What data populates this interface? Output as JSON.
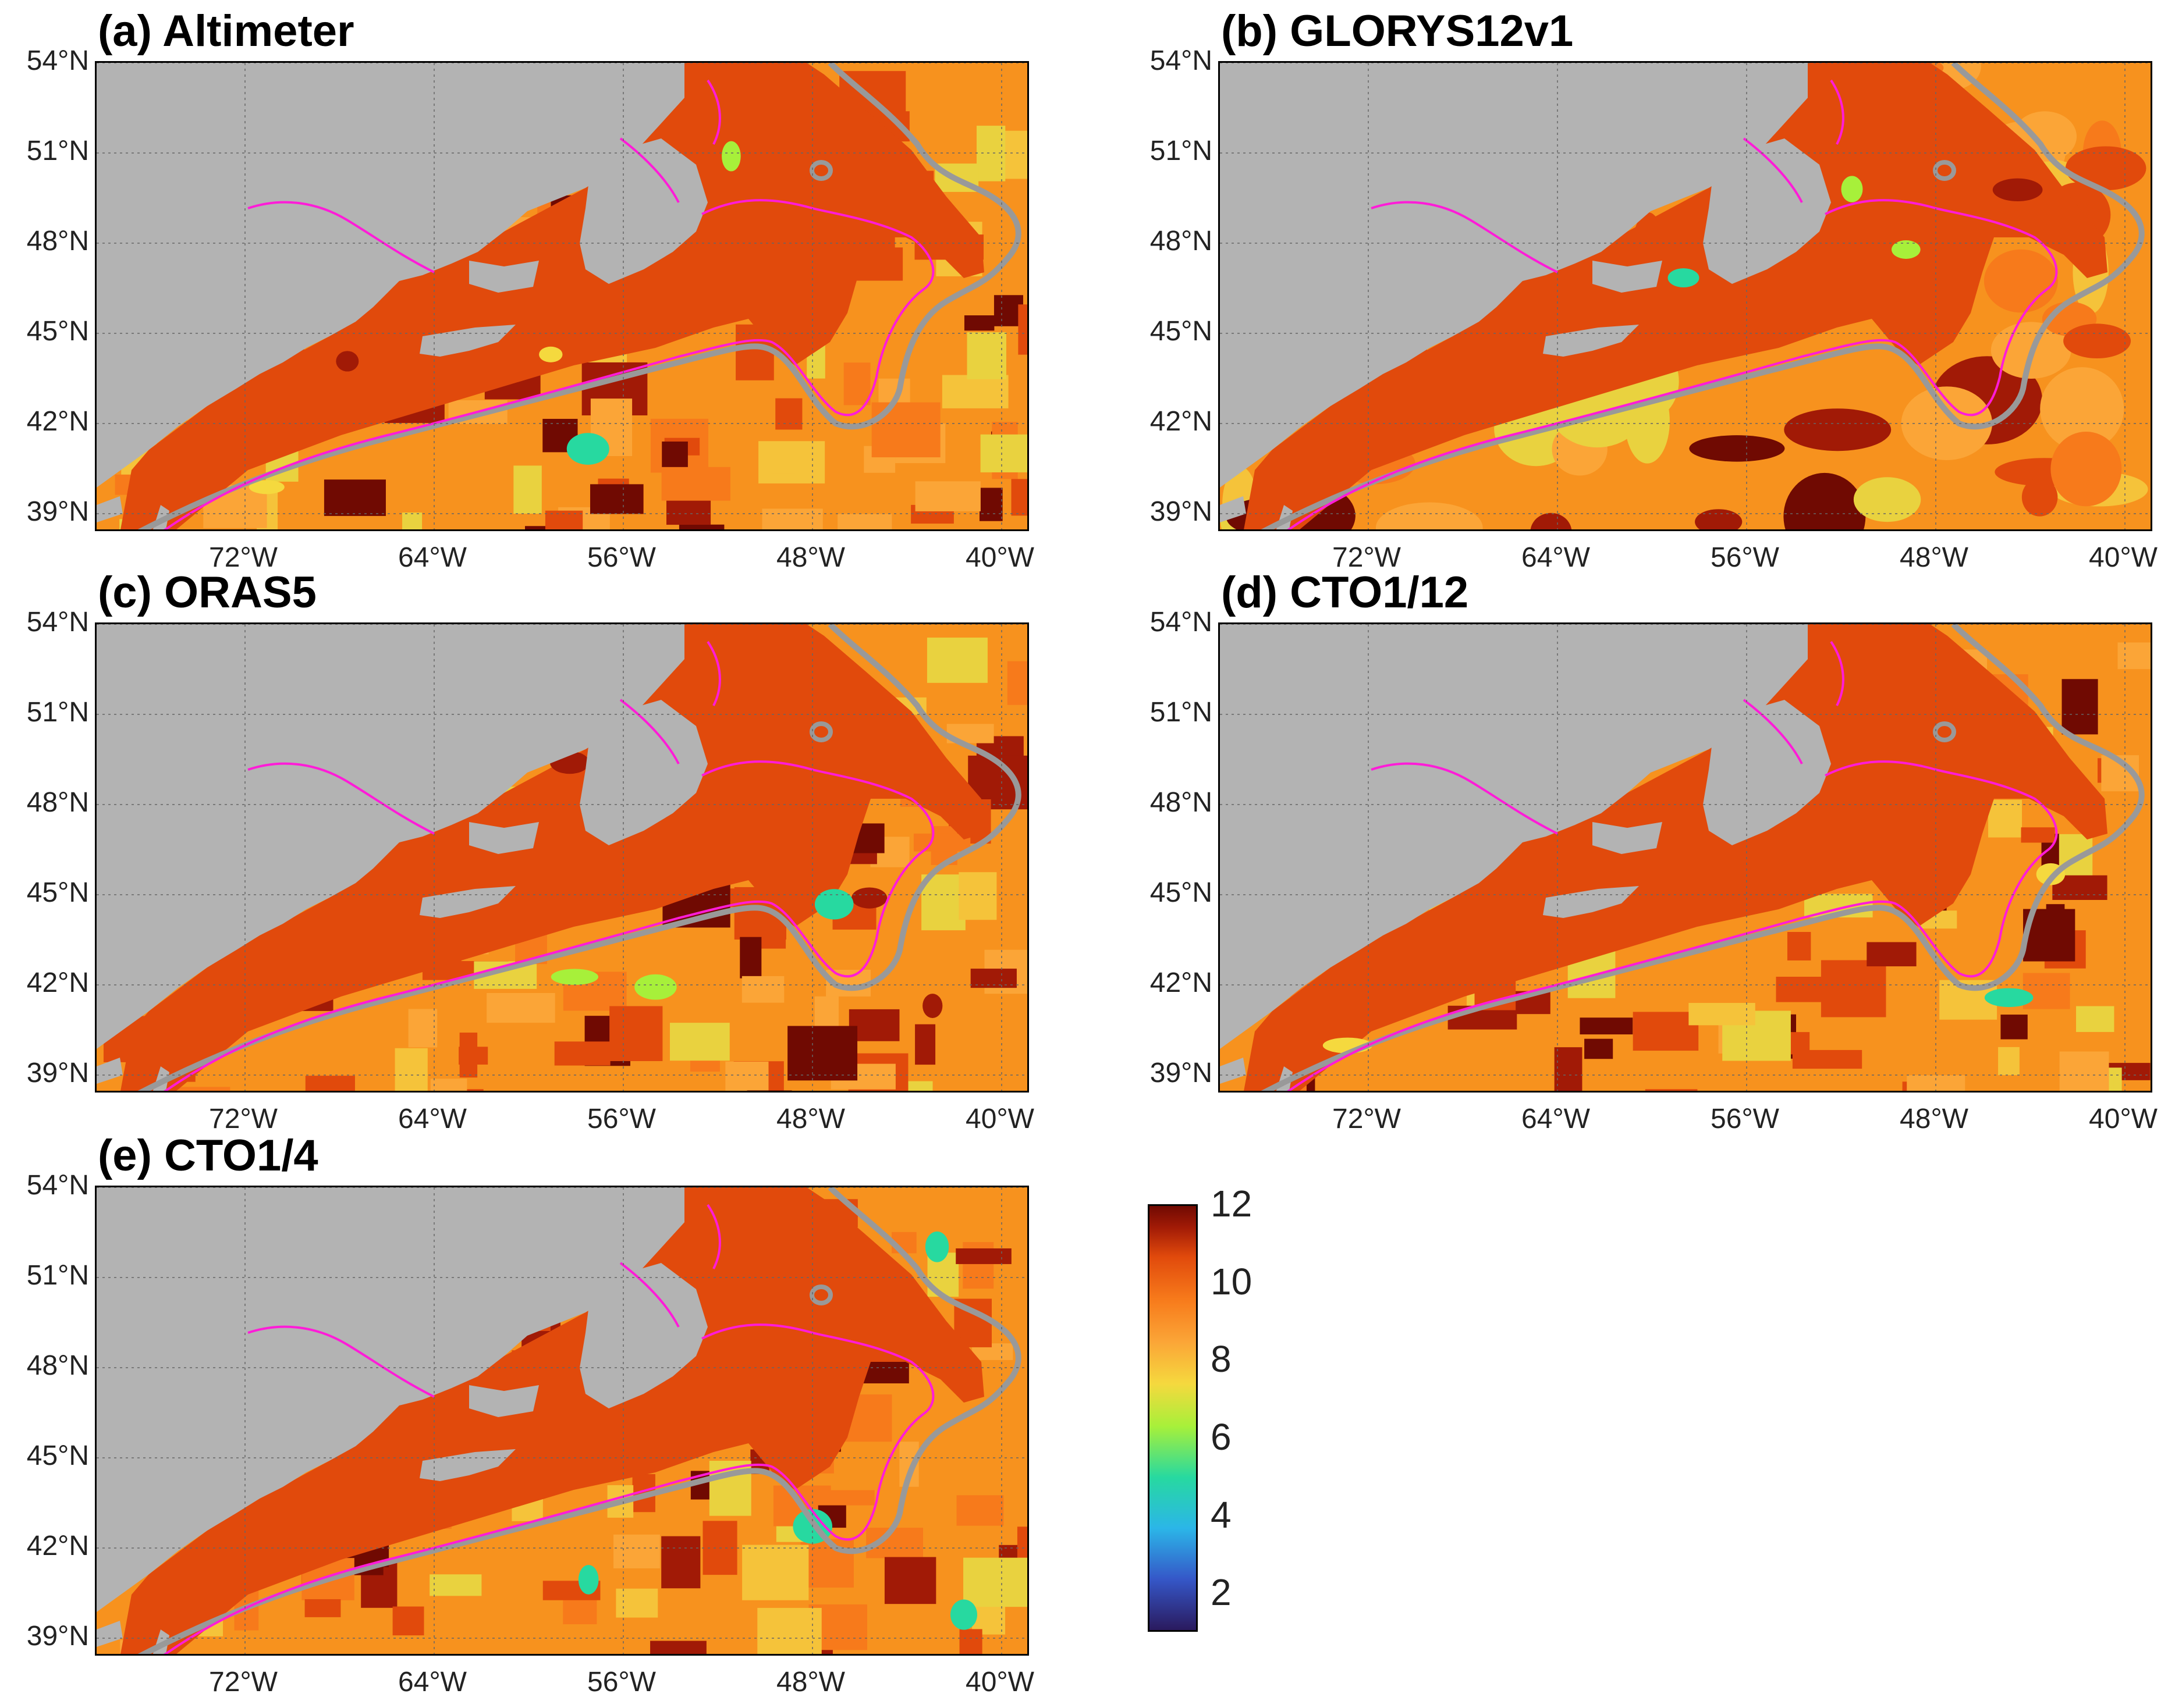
{
  "panels": [
    {
      "id": "a",
      "title": "(a) Altimeter"
    },
    {
      "id": "b",
      "title": "(b) GLORYS12v1"
    },
    {
      "id": "c",
      "title": "(c) ORAS5"
    },
    {
      "id": "d",
      "title": "(d) CTO1/12"
    },
    {
      "id": "e",
      "title": "(e) CTO1/4"
    }
  ],
  "lat_ticks": [
    "54°N",
    "51°N",
    "48°N",
    "45°N",
    "42°N",
    "39°N"
  ],
  "lon_ticks": [
    "72°W",
    "64°W",
    "56°W",
    "48°W",
    "40°W"
  ],
  "colorbar": {
    "ticks": [
      "12",
      "10",
      "8",
      "6",
      "4",
      "2"
    ],
    "range": [
      1,
      12
    ],
    "colormap": [
      "#2a1a5e",
      "#3557c8",
      "#2bb6e8",
      "#27d9a0",
      "#a7f03a",
      "#f5d93e",
      "#fba537",
      "#f77a1b",
      "#e14a0c",
      "#a11a06",
      "#700a02"
    ]
  },
  "colors": {
    "land": "#b3b3b3",
    "contour_magenta": "#ff1cd8",
    "contour_gray": "#999999",
    "shelf_fill": "#e14a0c",
    "ocean_base": "#f7921e"
  }
}
